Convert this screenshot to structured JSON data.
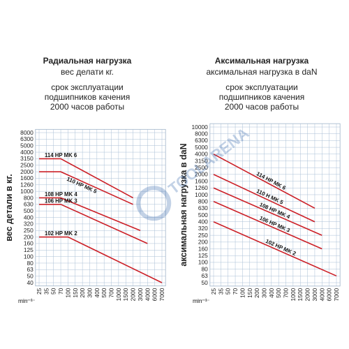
{
  "charts": [
    {
      "title": "Радиальная нагрузка",
      "subtitle_lines": [
        "вес делати кг.",
        "",
        "срок эксплуатации",
        "подшипников качения",
        "2000 часов работы"
      ],
      "chart_data": {
        "type": "line",
        "ylabel": "вес детали в кг.",
        "x_unit": "min⁻¹",
        "x_ticks": [
          "25",
          "35",
          "50",
          "70",
          "100",
          "150",
          "200",
          "300",
          "400",
          "500",
          "700",
          "1000",
          "1500",
          "2000",
          "3000",
          "4000",
          "6000",
          "7000"
        ],
        "y_ticks": [
          "8000",
          "6300",
          "5000",
          "4000",
          "3150",
          "2500",
          "2000",
          "1600",
          "1260",
          "1000",
          "800",
          "630",
          "500",
          "400",
          "320",
          "250",
          "200",
          "160",
          "125",
          "100",
          "80",
          "63",
          "50",
          "40"
        ],
        "series": [
          {
            "name": "114 HP MK 6",
            "points": [
              [
                "25",
                "3150"
              ],
              [
                "70",
                "3150"
              ],
              [
                "2000",
                "800"
              ]
            ],
            "color": "#cc2027"
          },
          {
            "name": "110 HP MK 5",
            "points": [
              [
                "25",
                "2000"
              ],
              [
                "70",
                "2000"
              ],
              [
                "2000",
                "630"
              ]
            ],
            "color": "#cc2027"
          },
          {
            "name": "108 HP MK 4",
            "points": [
              [
                "25",
                "800"
              ],
              [
                "70",
                "800"
              ],
              [
                "3000",
                "250"
              ]
            ],
            "color": "#cc2027"
          },
          {
            "name": "106 HP MK 3",
            "points": [
              [
                "25",
                "630"
              ],
              [
                "70",
                "630"
              ],
              [
                "4000",
                "160"
              ]
            ],
            "color": "#cc2027"
          },
          {
            "name": "102 HP MK 2",
            "points": [
              [
                "25",
                "200"
              ],
              [
                "100",
                "200"
              ],
              [
                "7000",
                "40"
              ]
            ],
            "color": "#cc2027"
          }
        ],
        "grid": true
      }
    },
    {
      "title": "Аксимальная нагрузка",
      "subtitle_lines": [
        "аксимальная нагрузка в daN",
        "",
        "срок эксплуатации",
        "подшипников качения",
        "2000 часов работы"
      ],
      "chart_data": {
        "type": "line",
        "ylabel": "аксимальная нагрузка в daN",
        "x_unit": "min⁻¹",
        "x_ticks": [
          "25",
          "35",
          "50",
          "70",
          "100",
          "150",
          "200",
          "300",
          "400",
          "500",
          "700",
          "1000",
          "1500",
          "2000",
          "3000",
          "4000",
          "6000",
          "7000"
        ],
        "y_ticks": [
          "10000",
          "8000",
          "6300",
          "5000",
          "4000",
          "3150",
          "2500",
          "2000",
          "1600",
          "1260",
          "1000",
          "800",
          "630",
          "500",
          "400",
          "320",
          "250",
          "200",
          "160",
          "125",
          "100",
          "80",
          "63",
          "50"
        ],
        "series": [
          {
            "name": "114 HP MK 6",
            "points": [
              [
                "25",
                "4000"
              ],
              [
                "3000",
                "630"
              ]
            ],
            "color": "#cc2027"
          },
          {
            "name": "110 H MK 5",
            "points": [
              [
                "25",
                "2000"
              ],
              [
                "3000",
                "400"
              ]
            ],
            "color": "#cc2027"
          },
          {
            "name": "108 HP MK 4",
            "points": [
              [
                "25",
                "1260"
              ],
              [
                "4000",
                "250"
              ]
            ],
            "color": "#cc2027"
          },
          {
            "name": "106 HP MK 3",
            "points": [
              [
                "25",
                "800"
              ],
              [
                "4000",
                "160"
              ]
            ],
            "color": "#cc2027"
          },
          {
            "name": "102 HP MK 2",
            "points": [
              [
                "25",
                "400"
              ],
              [
                "7000",
                "63"
              ]
            ],
            "color": "#cc2027"
          }
        ],
        "grid": true
      }
    }
  ],
  "watermark": {
    "text": "TOOLARENA",
    "color": "#2a5fa8"
  }
}
